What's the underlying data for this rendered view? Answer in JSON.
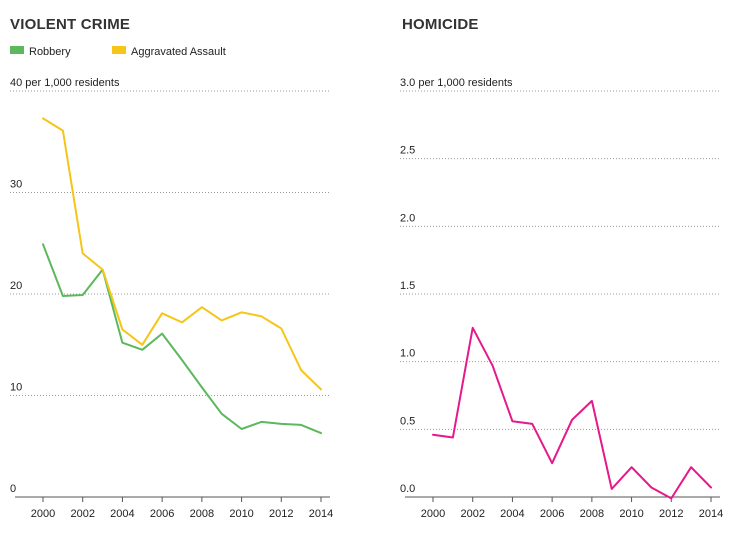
{
  "chart_data": [
    {
      "type": "line",
      "title": "VIOLENT CRIME",
      "ylabel": "",
      "top_tick_label": "40 per 1,000 residents",
      "ylim": [
        0,
        40
      ],
      "yticks": [
        0,
        10,
        20,
        30,
        40
      ],
      "ytick_labels": [
        "0",
        "10",
        "20",
        "30",
        "40 per 1,000 residents"
      ],
      "x": [
        2000,
        2001,
        2002,
        2003,
        2004,
        2005,
        2006,
        2007,
        2008,
        2009,
        2010,
        2011,
        2012,
        2013,
        2014
      ],
      "xticks": [
        2000,
        2002,
        2004,
        2006,
        2008,
        2010,
        2012,
        2014
      ],
      "grid": true,
      "legend_position": "top-left",
      "series": [
        {
          "name": "Robbery",
          "color": "#5cb85c",
          "values": [
            24.9,
            19.8,
            19.9,
            22.4,
            15.2,
            14.5,
            16.1,
            13.5,
            10.8,
            8.2,
            6.7,
            7.4,
            7.2,
            7.1,
            6.3
          ]
        },
        {
          "name": "Aggravated Assault",
          "color": "#f5c518",
          "values": [
            37.3,
            36.1,
            24.0,
            22.4,
            16.5,
            15.0,
            18.1,
            17.2,
            18.7,
            17.4,
            18.2,
            17.8,
            16.6,
            12.5,
            10.6
          ]
        }
      ]
    },
    {
      "type": "line",
      "title": "HOMICIDE",
      "ylabel": "",
      "ylim": [
        0,
        3.0
      ],
      "yticks": [
        0,
        0.5,
        1.0,
        1.5,
        2.0,
        2.5,
        3.0
      ],
      "ytick_labels": [
        "0.0",
        "0.5",
        "1.0",
        "1.5",
        "2.0",
        "2.5",
        "3.0 per 1,000 residents"
      ],
      "x": [
        2000,
        2001,
        2002,
        2003,
        2004,
        2005,
        2006,
        2007,
        2008,
        2009,
        2010,
        2011,
        2012,
        2013,
        2014
      ],
      "xticks": [
        2000,
        2002,
        2004,
        2006,
        2008,
        2010,
        2012,
        2014
      ],
      "grid": true,
      "series": [
        {
          "color": "#e5198a",
          "values": [
            0.46,
            0.44,
            1.25,
            0.97,
            0.56,
            0.54,
            0.25,
            0.57,
            0.71,
            0.06,
            0.22,
            0.07,
            -0.01,
            0.22,
            0.07
          ]
        }
      ]
    }
  ]
}
